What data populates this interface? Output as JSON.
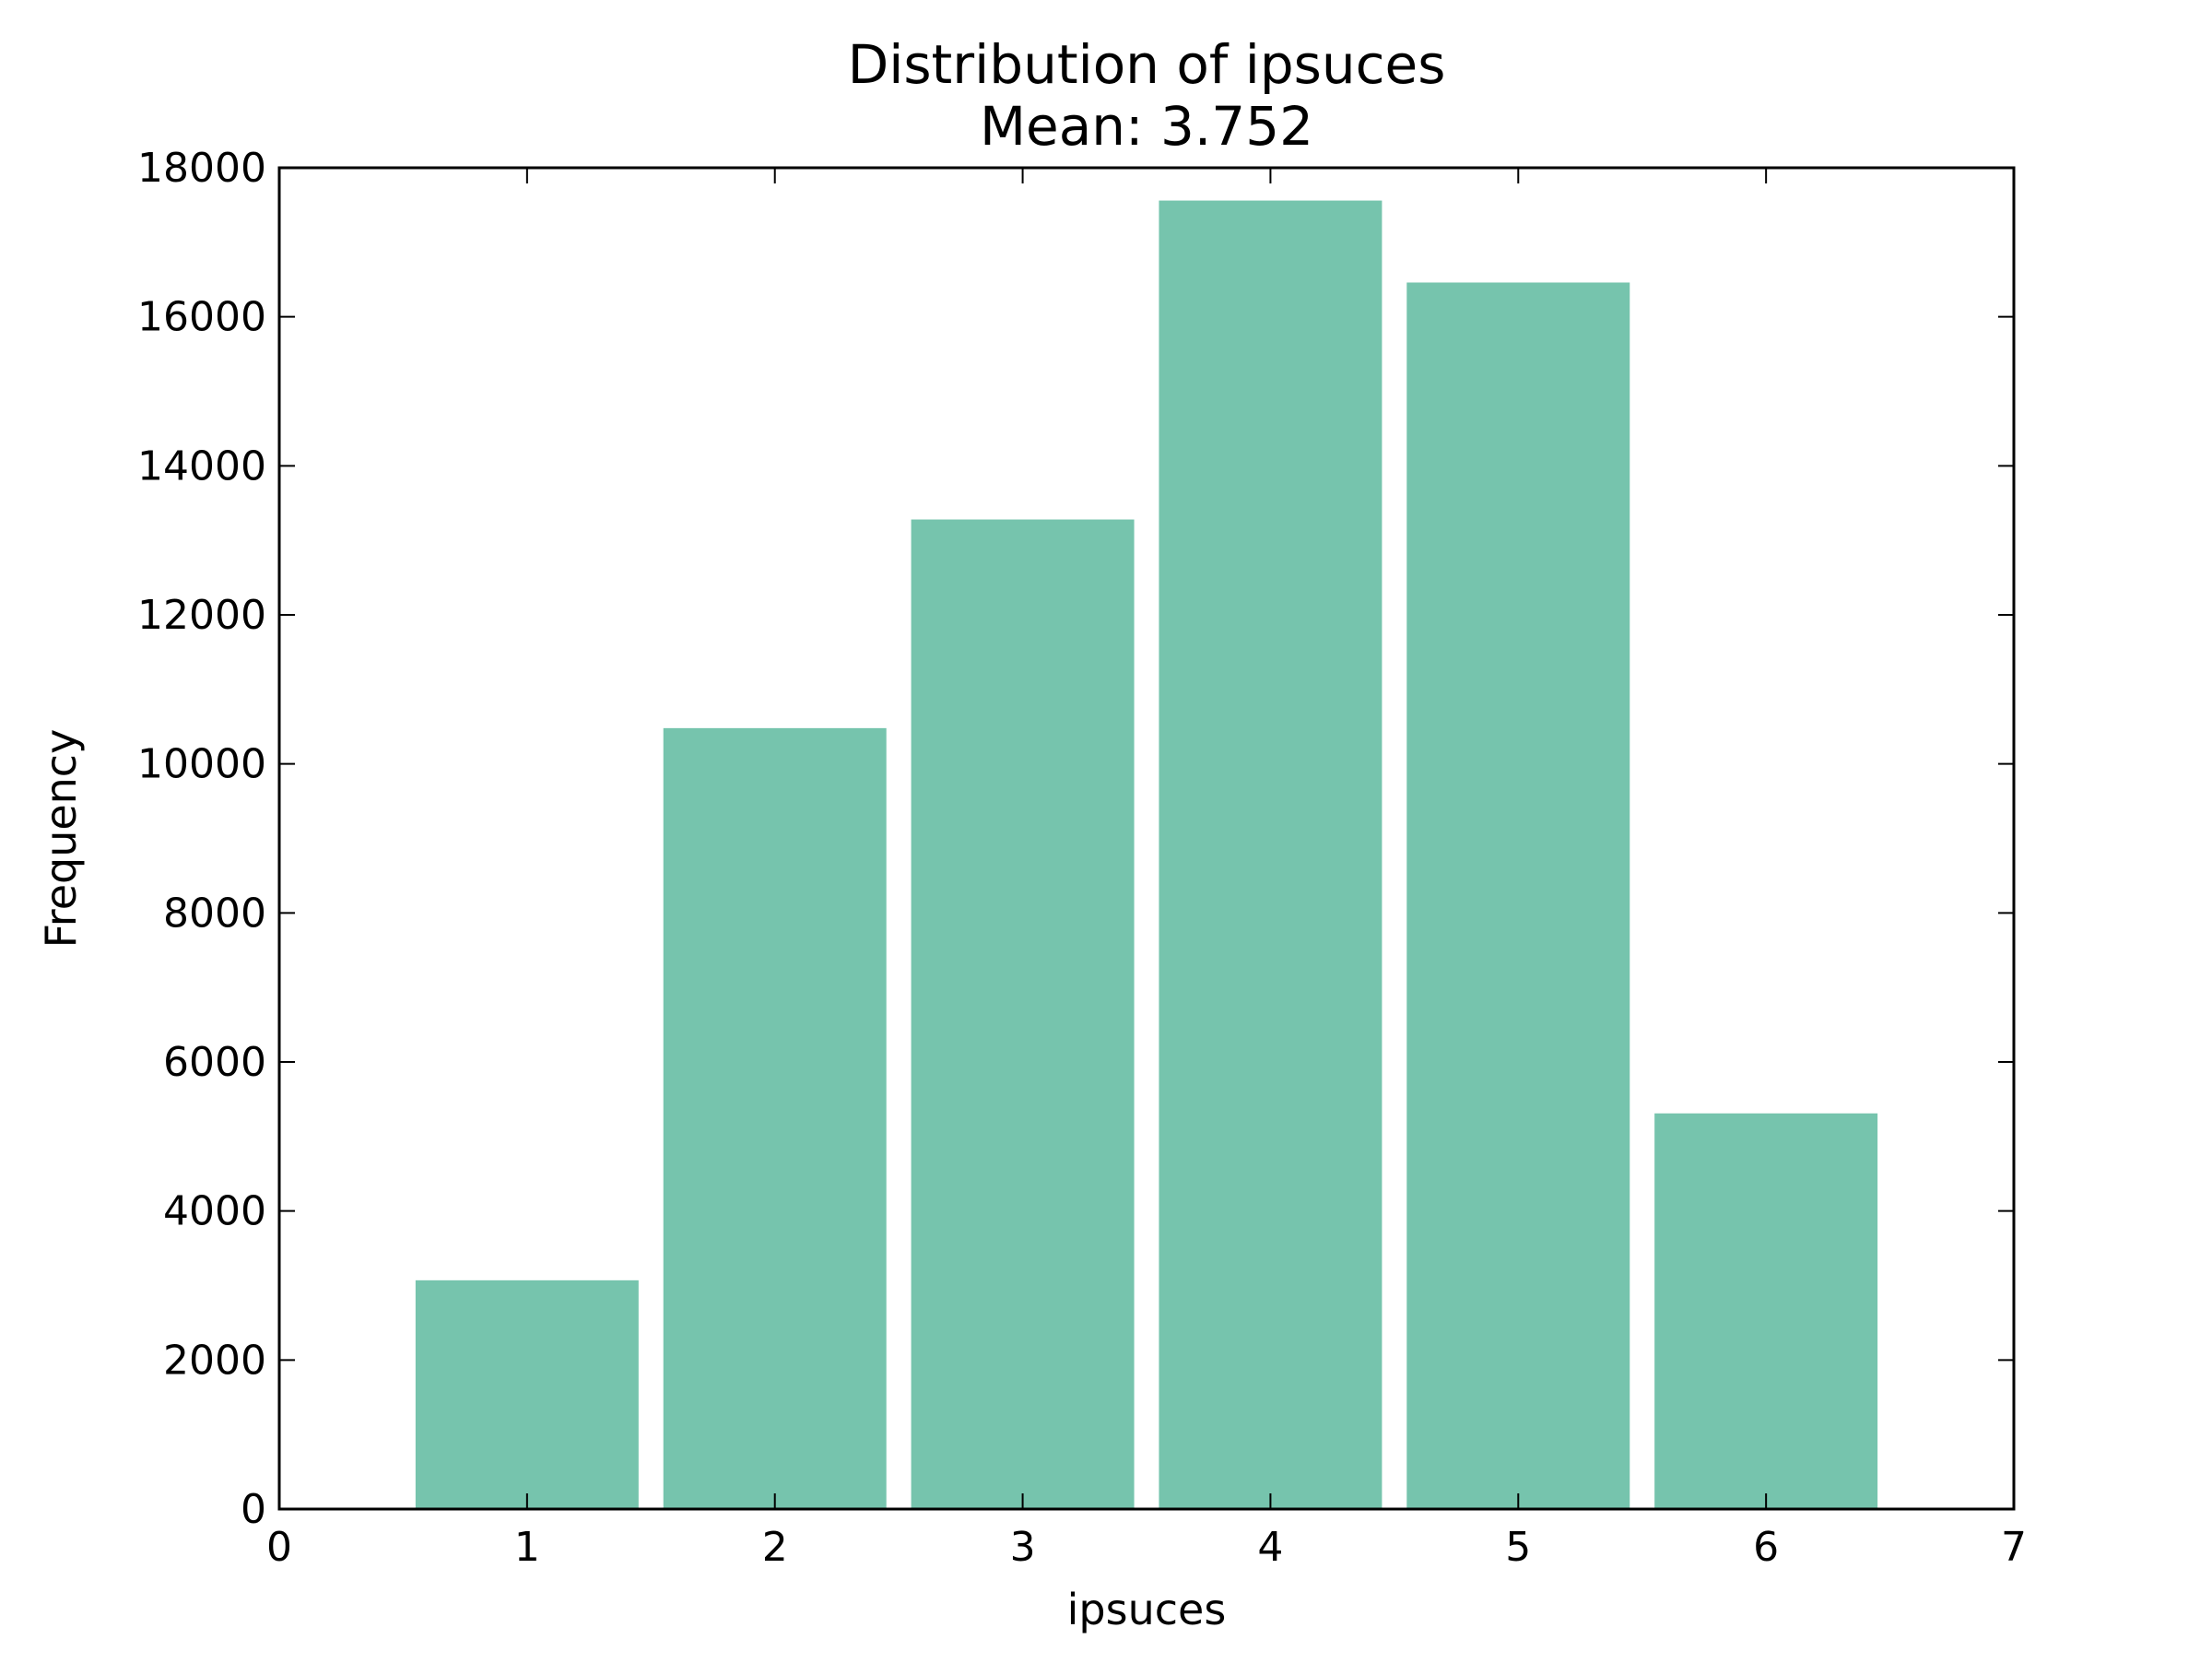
{
  "chart_data": {
    "type": "bar",
    "title": [
      "Distribution of ipsuces",
      "Mean: 3.752"
    ],
    "xlabel": "ipsuces",
    "ylabel": "Frequency",
    "x": [
      1,
      2,
      3,
      4,
      5,
      6
    ],
    "values": [
      3070,
      10480,
      13280,
      17560,
      16460,
      5310
    ],
    "bar_width": 0.9,
    "xlim": [
      0,
      7
    ],
    "ylim": [
      0,
      18000
    ],
    "xticks": [
      "0",
      "1",
      "2",
      "3",
      "4",
      "5",
      "6",
      "7"
    ],
    "yticks": [
      "0",
      "2000",
      "4000",
      "6000",
      "8000",
      "10000",
      "12000",
      "14000",
      "16000",
      "18000"
    ],
    "grid": false,
    "colors": {
      "bar": "#76c4ad",
      "axis": "#000000",
      "background": "#ffffff"
    }
  }
}
